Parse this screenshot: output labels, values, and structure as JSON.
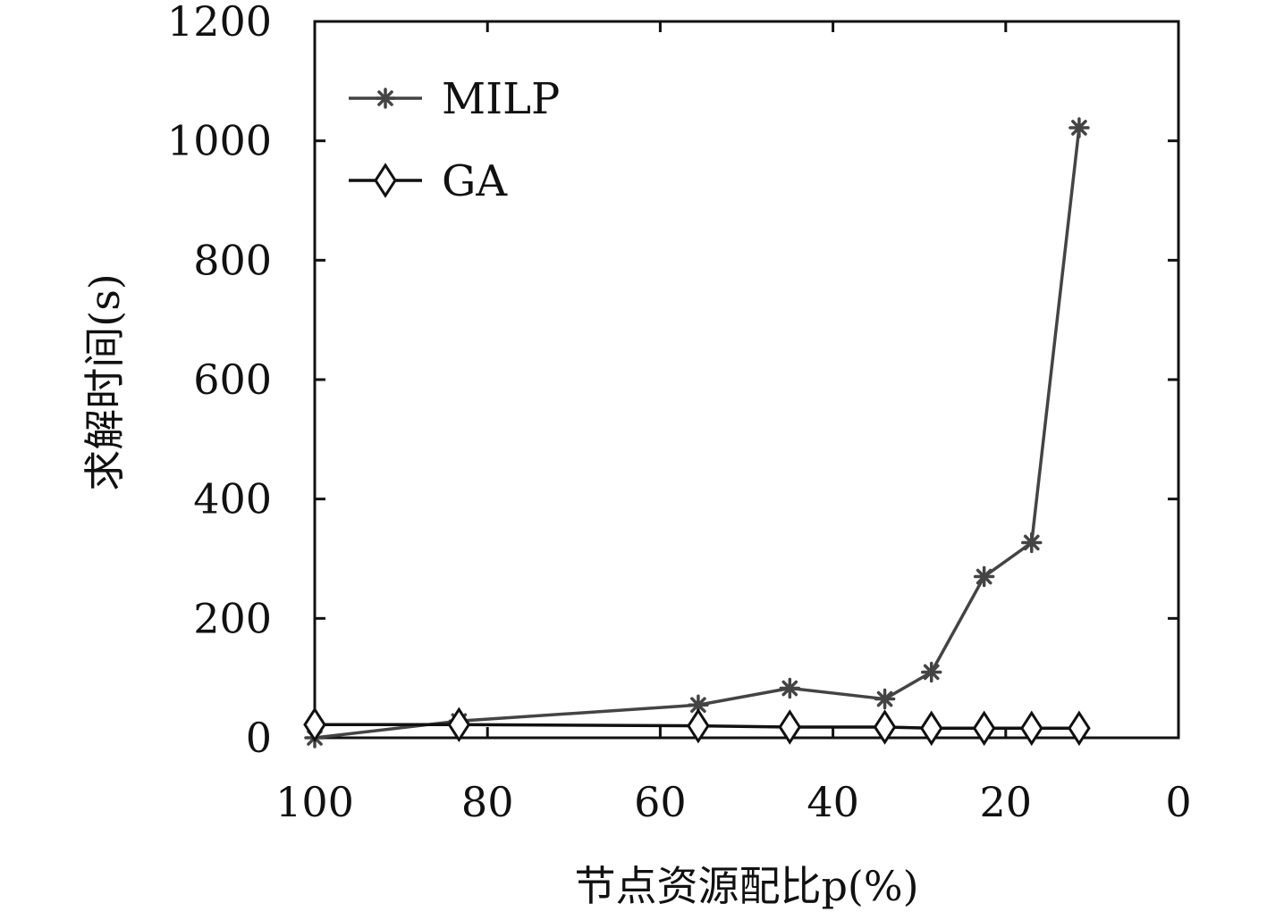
{
  "chart_data": {
    "type": "line",
    "title": "",
    "xlabel": "节点资源配比p(%)",
    "ylabel": "求解时间(s)",
    "xlim": [
      100,
      0
    ],
    "ylim": [
      0,
      1200
    ],
    "x_reversed": true,
    "xticks": [
      "100",
      "80",
      "60",
      "40",
      "20",
      "0"
    ],
    "yticks": [
      "0",
      "200",
      "400",
      "600",
      "800",
      "1000",
      "1200"
    ],
    "grid": false,
    "legend_position": "top-left",
    "x": [
      100,
      83.3,
      55.6,
      45.0,
      34.0,
      28.6,
      22.5,
      17.0,
      11.5
    ],
    "series": [
      {
        "name": "MILP",
        "marker": "asterisk",
        "color": "#444444",
        "values": [
          0,
          28,
          55,
          83,
          65,
          110,
          270,
          327,
          1022
        ]
      },
      {
        "name": "GA",
        "marker": "diamond",
        "color": "#111111",
        "values": [
          22,
          22,
          20,
          18,
          18,
          16,
          16,
          16,
          16
        ]
      }
    ]
  }
}
